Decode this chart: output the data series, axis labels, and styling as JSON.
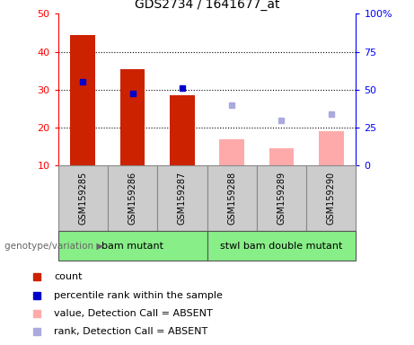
{
  "title": "GDS2734 / 1641677_at",
  "samples": [
    "GSM159285",
    "GSM159286",
    "GSM159287",
    "GSM159288",
    "GSM159289",
    "GSM159290"
  ],
  "count_values": [
    44.5,
    35.5,
    28.5,
    null,
    null,
    null
  ],
  "rank_values": [
    32.0,
    29.0,
    30.5,
    null,
    null,
    null
  ],
  "count_absent": [
    null,
    null,
    null,
    17.0,
    14.5,
    19.0
  ],
  "rank_absent": [
    null,
    null,
    null,
    26.0,
    22.0,
    23.5
  ],
  "bar_color_present": "#cc2200",
  "bar_color_absent": "#ffaaaa",
  "square_color_present": "#0000cc",
  "square_color_absent": "#aaaadd",
  "ylim_left": [
    10,
    50
  ],
  "ylim_right": [
    0,
    100
  ],
  "yticks_left": [
    10,
    20,
    30,
    40,
    50
  ],
  "yticks_right": [
    0,
    25,
    50,
    75,
    100
  ],
  "ytick_labels_right": [
    "0",
    "25",
    "50",
    "75",
    "100%"
  ],
  "group_labels": [
    "bam mutant",
    "stwl bam double mutant"
  ],
  "group_ranges": [
    [
      0,
      3
    ],
    [
      3,
      6
    ]
  ],
  "group_colors": [
    "#88ee88",
    "#88ee88"
  ],
  "bottom_label": "genotype/variation",
  "legend_items": [
    {
      "label": "count",
      "color": "#cc2200"
    },
    {
      "label": "percentile rank within the sample",
      "color": "#0000cc"
    },
    {
      "label": "value, Detection Call = ABSENT",
      "color": "#ffaaaa"
    },
    {
      "label": "rank, Detection Call = ABSENT",
      "color": "#aaaadd"
    }
  ],
  "bg_color": "#ffffff",
  "plot_bg_color": "#ffffff",
  "sample_box_color": "#cccccc",
  "bar_width": 0.5
}
